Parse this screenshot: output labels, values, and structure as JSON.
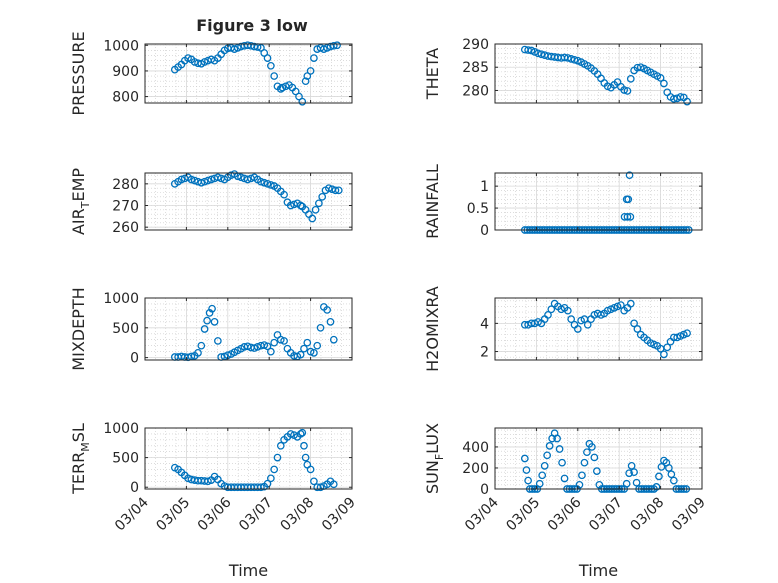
{
  "figure": {
    "title": "Figure 3 low",
    "marker_color": "#0072BD"
  },
  "chart_data": [
    {
      "type": "scatter",
      "ylabel": "PRESSURE",
      "xlim": [
        0,
        5
      ],
      "ylim": [
        775,
        1005
      ],
      "yticks": [
        800,
        900,
        1000
      ],
      "grid": true,
      "x": [
        0.72,
        0.8,
        0.88,
        0.96,
        1.04,
        1.12,
        1.2,
        1.28,
        1.36,
        1.44,
        1.52,
        1.6,
        1.68,
        1.76,
        1.84,
        1.92,
        2.0,
        2.08,
        2.16,
        2.24,
        2.32,
        2.4,
        2.48,
        2.56,
        2.64,
        2.72,
        2.8,
        2.88,
        2.96,
        3.04,
        3.12,
        3.2,
        3.28,
        3.32,
        3.4,
        3.48,
        3.56,
        3.64,
        3.72,
        3.8,
        3.88,
        3.92,
        4.0,
        4.08,
        4.16,
        4.24,
        4.32,
        4.4,
        4.48,
        4.56,
        4.64
      ],
      "y": [
        905,
        915,
        925,
        940,
        950,
        945,
        935,
        930,
        928,
        935,
        940,
        945,
        940,
        950,
        965,
        980,
        988,
        990,
        985,
        990,
        995,
        998,
        1000,
        998,
        995,
        993,
        990,
        970,
        950,
        920,
        880,
        840,
        830,
        835,
        840,
        845,
        835,
        820,
        800,
        780,
        860,
        880,
        900,
        950,
        985,
        990,
        985,
        990,
        995,
        998,
        1000
      ]
    },
    {
      "type": "scatter",
      "ylabel": "THETA",
      "xlim": [
        0,
        5
      ],
      "ylim": [
        277.3,
        290
      ],
      "yticks": [
        280,
        285,
        290
      ],
      "grid": true,
      "x": [
        0.72,
        0.8,
        0.88,
        0.96,
        1.04,
        1.12,
        1.2,
        1.28,
        1.36,
        1.44,
        1.52,
        1.6,
        1.68,
        1.76,
        1.84,
        1.92,
        2.0,
        2.08,
        2.16,
        2.24,
        2.32,
        2.4,
        2.48,
        2.56,
        2.64,
        2.72,
        2.8,
        2.88,
        2.96,
        3.04,
        3.12,
        3.2,
        3.28,
        3.36,
        3.44,
        3.52,
        3.6,
        3.68,
        3.76,
        3.84,
        3.92,
        4.0,
        4.08,
        4.16,
        4.24,
        4.32,
        4.4,
        4.48,
        4.56,
        4.64
      ],
      "y": [
        288.8,
        288.7,
        288.6,
        288.3,
        288.0,
        287.8,
        287.6,
        287.4,
        287.3,
        287.2,
        287.1,
        287.0,
        287.1,
        287.0,
        286.8,
        286.6,
        286.4,
        286.1,
        285.7,
        285.3,
        284.8,
        284.2,
        283.5,
        282.6,
        281.6,
        280.9,
        280.6,
        281.2,
        281.8,
        280.8,
        280.1,
        279.9,
        282.5,
        284.3,
        284.9,
        285.0,
        284.7,
        284.3,
        283.9,
        283.5,
        283.1,
        282.7,
        281.5,
        279.6,
        278.6,
        278.2,
        278.3,
        278.6,
        278.5,
        277.6
      ]
    },
    {
      "type": "scatter",
      "ylabel": "AIR_TEMP",
      "xlim": [
        0,
        5
      ],
      "ylim": [
        258.7,
        285
      ],
      "yticks": [
        260,
        270,
        280
      ],
      "grid": true,
      "x": [
        0.72,
        0.8,
        0.88,
        0.96,
        1.04,
        1.12,
        1.2,
        1.28,
        1.36,
        1.44,
        1.52,
        1.6,
        1.68,
        1.76,
        1.84,
        1.92,
        2.0,
        2.08,
        2.16,
        2.24,
        2.32,
        2.4,
        2.48,
        2.56,
        2.64,
        2.72,
        2.8,
        2.88,
        2.96,
        3.04,
        3.12,
        3.2,
        3.28,
        3.36,
        3.44,
        3.52,
        3.6,
        3.68,
        3.76,
        3.8,
        3.88,
        3.96,
        4.04,
        4.12,
        4.2,
        4.28,
        4.36,
        4.44,
        4.52,
        4.6,
        4.68
      ],
      "y": [
        280,
        281,
        282,
        282.5,
        283,
        282,
        281.5,
        281,
        280.5,
        281,
        281.5,
        282,
        282.5,
        283,
        282.5,
        282,
        283,
        284,
        284.5,
        283.5,
        283,
        282.5,
        282,
        282.5,
        283,
        282,
        281,
        280.5,
        280,
        279.5,
        279,
        278,
        276.5,
        275,
        271.5,
        270,
        270.5,
        271,
        270,
        269.5,
        268,
        266,
        264,
        268,
        271,
        274,
        277,
        278,
        277.5,
        277,
        277
      ]
    },
    {
      "type": "scatter",
      "ylabel": "RAINFALL",
      "xlim": [
        0,
        5
      ],
      "ylim": [
        0,
        1.3
      ],
      "yticks": [
        0,
        0.5,
        1
      ],
      "grid": true,
      "x": [
        0.72,
        0.78,
        0.84,
        0.9,
        0.96,
        1.02,
        1.08,
        1.14,
        1.2,
        1.26,
        1.32,
        1.38,
        1.44,
        1.5,
        1.56,
        1.62,
        1.68,
        1.74,
        1.8,
        1.86,
        1.92,
        1.98,
        2.04,
        2.1,
        2.16,
        2.22,
        2.28,
        2.34,
        2.4,
        2.46,
        2.52,
        2.58,
        2.64,
        2.7,
        2.76,
        2.82,
        2.88,
        2.94,
        3.0,
        3.06,
        3.12,
        3.18,
        3.24,
        3.3,
        3.36,
        3.42,
        3.48,
        3.54,
        3.6,
        3.66,
        3.72,
        3.78,
        3.84,
        3.9,
        3.96,
        4.02,
        4.08,
        4.14,
        4.2,
        4.26,
        4.32,
        4.38,
        4.44,
        4.5,
        4.56,
        4.62,
        4.68,
        3.13,
        3.2,
        3.27,
        3.18,
        3.22,
        3.25
      ],
      "y": [
        0,
        0,
        0,
        0,
        0,
        0,
        0,
        0,
        0,
        0,
        0,
        0,
        0,
        0,
        0,
        0,
        0,
        0,
        0,
        0,
        0,
        0,
        0,
        0,
        0,
        0,
        0,
        0,
        0,
        0,
        0,
        0,
        0,
        0,
        0,
        0,
        0,
        0,
        0,
        0,
        0,
        0,
        0,
        0,
        0,
        0,
        0,
        0,
        0,
        0,
        0,
        0,
        0,
        0,
        0,
        0,
        0,
        0,
        0,
        0,
        0,
        0,
        0,
        0,
        0,
        0,
        0,
        0.3,
        0.3,
        0.3,
        0.7,
        0.7,
        1.25
      ]
    },
    {
      "type": "scatter",
      "ylabel": "MIXDEPTH",
      "xlim": [
        0,
        5
      ],
      "ylim": [
        -40,
        1000
      ],
      "yticks": [
        0,
        500,
        1000
      ],
      "grid": true,
      "x": [
        0.72,
        0.8,
        0.88,
        0.96,
        1.04,
        1.12,
        1.2,
        1.28,
        1.36,
        1.44,
        1.5,
        1.56,
        1.62,
        1.68,
        1.76,
        1.84,
        1.92,
        2.0,
        2.08,
        2.16,
        2.24,
        2.32,
        2.4,
        2.48,
        2.56,
        2.64,
        2.72,
        2.8,
        2.88,
        2.96,
        3.04,
        3.12,
        3.2,
        3.28,
        3.36,
        3.44,
        3.52,
        3.6,
        3.68,
        3.76,
        3.84,
        3.92,
        4.0,
        4.08,
        4.16,
        4.24,
        4.32,
        4.4,
        4.48,
        4.56
      ],
      "y": [
        10,
        10,
        20,
        10,
        5,
        20,
        30,
        80,
        200,
        480,
        620,
        750,
        820,
        600,
        280,
        10,
        20,
        40,
        60,
        90,
        120,
        150,
        180,
        190,
        170,
        160,
        180,
        200,
        210,
        190,
        100,
        250,
        380,
        300,
        280,
        150,
        80,
        30,
        20,
        50,
        150,
        250,
        100,
        80,
        200,
        500,
        850,
        800,
        600,
        300
      ]
    },
    {
      "type": "scatter",
      "ylabel": "H2OMIXRA",
      "xlim": [
        0,
        5
      ],
      "ylim": [
        1.4,
        5.8
      ],
      "yticks": [
        2,
        4
      ],
      "grid": true,
      "x": [
        0.72,
        0.8,
        0.88,
        0.96,
        1.04,
        1.12,
        1.2,
        1.28,
        1.36,
        1.44,
        1.52,
        1.6,
        1.68,
        1.76,
        1.84,
        1.92,
        2.0,
        2.08,
        2.16,
        2.24,
        2.32,
        2.4,
        2.48,
        2.56,
        2.64,
        2.72,
        2.8,
        2.88,
        2.96,
        3.04,
        3.12,
        3.2,
        3.28,
        3.36,
        3.44,
        3.52,
        3.6,
        3.68,
        3.76,
        3.84,
        3.92,
        4.0,
        4.08,
        4.16,
        4.24,
        4.32,
        4.4,
        4.48,
        4.56,
        4.64
      ],
      "y": [
        3.9,
        3.9,
        4.0,
        4.0,
        4.1,
        4.0,
        4.3,
        4.6,
        5.0,
        5.4,
        5.2,
        5.0,
        5.1,
        4.9,
        4.3,
        3.9,
        3.6,
        4.2,
        4.3,
        3.9,
        4.3,
        4.6,
        4.7,
        4.6,
        4.7,
        4.9,
        5.0,
        5.1,
        5.2,
        5.3,
        4.9,
        5.1,
        5.4,
        4.0,
        3.6,
        3.2,
        3.0,
        2.8,
        2.6,
        2.5,
        2.4,
        2.2,
        1.8,
        2.3,
        2.7,
        3.0,
        3.0,
        3.1,
        3.2,
        3.3
      ]
    },
    {
      "type": "scatter",
      "ylabel": "TERR_MSL",
      "xlim": [
        0,
        5
      ],
      "ylim": [
        -30,
        1000
      ],
      "yticks": [
        0,
        500,
        1000
      ],
      "grid": true,
      "x": [
        0.72,
        0.8,
        0.88,
        0.96,
        1.04,
        1.12,
        1.2,
        1.28,
        1.36,
        1.44,
        1.52,
        1.6,
        1.68,
        1.76,
        1.84,
        1.92,
        2.0,
        2.08,
        2.16,
        2.24,
        2.32,
        2.4,
        2.48,
        2.56,
        2.64,
        2.72,
        2.8,
        2.88,
        2.96,
        3.04,
        3.12,
        3.2,
        3.28,
        3.36,
        3.44,
        3.52,
        3.6,
        3.68,
        3.76,
        3.8,
        3.84,
        3.88,
        3.92,
        4.0,
        4.08,
        4.16,
        4.24,
        4.32,
        4.4,
        4.48,
        4.56
      ],
      "y": [
        330,
        300,
        250,
        200,
        150,
        130,
        120,
        110,
        110,
        105,
        100,
        120,
        180,
        130,
        60,
        20,
        0,
        0,
        0,
        0,
        0,
        0,
        0,
        0,
        0,
        0,
        0,
        10,
        60,
        150,
        300,
        500,
        700,
        800,
        850,
        900,
        880,
        850,
        900,
        920,
        700,
        500,
        380,
        300,
        100,
        0,
        0,
        20,
        50,
        100,
        50
      ]
    },
    {
      "type": "scatter",
      "ylabel": "SUN_FLUX",
      "xlim": [
        0,
        5
      ],
      "ylim": [
        0,
        580
      ],
      "yticks": [
        0,
        200,
        400
      ],
      "grid": true,
      "x": [
        0.72,
        0.76,
        0.8,
        0.84,
        0.9,
        0.96,
        1.02,
        1.08,
        1.14,
        1.2,
        1.26,
        1.32,
        1.38,
        1.44,
        1.5,
        1.56,
        1.62,
        1.68,
        1.74,
        1.8,
        1.86,
        1.92,
        1.98,
        2.04,
        2.1,
        2.16,
        2.22,
        2.28,
        2.34,
        2.4,
        2.46,
        2.52,
        2.58,
        2.64,
        2.7,
        2.76,
        2.82,
        2.88,
        2.94,
        3.0,
        3.06,
        3.12,
        3.18,
        3.24,
        3.3,
        3.36,
        3.42,
        3.48,
        3.54,
        3.6,
        3.66,
        3.72,
        3.78,
        3.84,
        3.9,
        3.96,
        4.02,
        4.08,
        4.14,
        4.2,
        4.26,
        4.32,
        4.38,
        4.44,
        4.5,
        4.56,
        4.62
      ],
      "y": [
        290,
        180,
        80,
        0,
        0,
        0,
        0,
        50,
        130,
        220,
        320,
        410,
        480,
        530,
        480,
        380,
        250,
        100,
        0,
        0,
        0,
        0,
        0,
        40,
        130,
        250,
        350,
        430,
        400,
        300,
        170,
        40,
        0,
        0,
        0,
        0,
        0,
        0,
        0,
        0,
        0,
        0,
        50,
        150,
        220,
        160,
        60,
        0,
        0,
        0,
        0,
        0,
        0,
        0,
        20,
        120,
        210,
        270,
        250,
        200,
        140,
        80,
        0,
        0,
        0,
        0,
        0
      ]
    }
  ],
  "xaxis": {
    "xlim": [
      0,
      5
    ],
    "tick_labels": [
      "03/04",
      "03/05",
      "03/06",
      "03/07",
      "03/08",
      "03/09"
    ],
    "xlabel": "Time"
  }
}
